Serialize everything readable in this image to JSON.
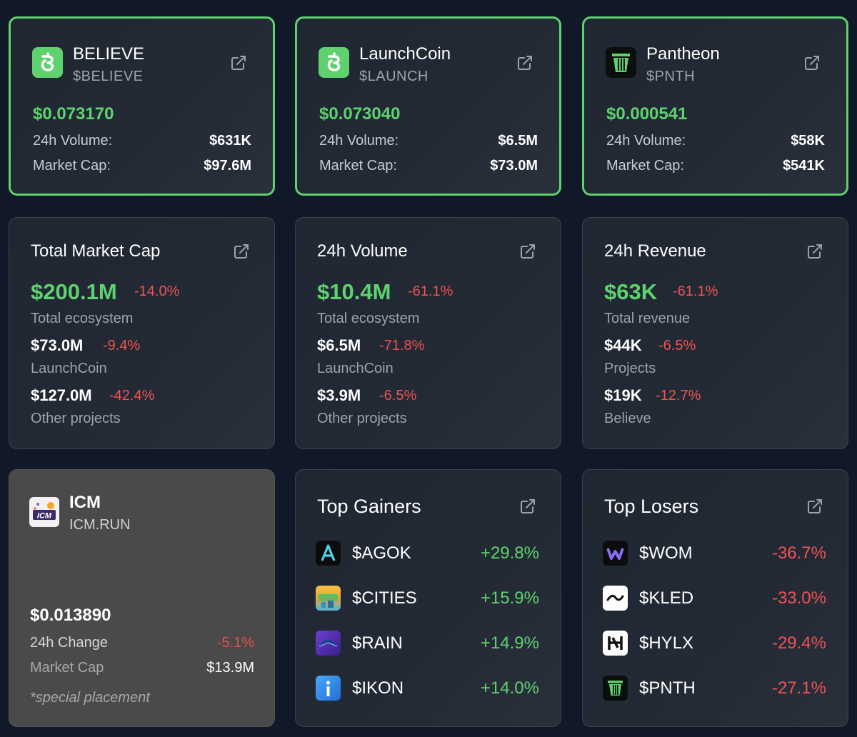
{
  "tokens": [
    {
      "name": "BELIEVE",
      "symbol": "$BELIEVE",
      "price": "$0.073170",
      "volume_label": "24h Volume:",
      "volume": "$631K",
      "mcap_label": "Market Cap:",
      "mcap": "$97.6M",
      "logo_icon": "believe-logo-icon"
    },
    {
      "name": "LaunchCoin",
      "symbol": "$LAUNCH",
      "price": "$0.073040",
      "volume_label": "24h Volume:",
      "volume": "$6.5M",
      "mcap_label": "Market Cap:",
      "mcap": "$73.0M",
      "logo_icon": "launchcoin-logo-icon"
    },
    {
      "name": "Pantheon",
      "symbol": "$PNTH",
      "price": "$0.000541",
      "volume_label": "24h Volume:",
      "volume": "$58K",
      "mcap_label": "Market Cap:",
      "mcap": "$541K",
      "logo_icon": "pantheon-logo-icon"
    }
  ],
  "stats": [
    {
      "title": "Total Market Cap",
      "big": "$200.1M",
      "big_change": "-14.0%",
      "big_sub": "Total ecosystem",
      "rows": [
        {
          "value": "$73.0M",
          "change": "-9.4%",
          "label": "LaunchCoin"
        },
        {
          "value": "$127.0M",
          "change": "-42.4%",
          "label": "Other projects"
        }
      ]
    },
    {
      "title": "24h Volume",
      "big": "$10.4M",
      "big_change": "-61.1%",
      "big_sub": "Total ecosystem",
      "rows": [
        {
          "value": "$6.5M",
          "change": "-71.8%",
          "label": "LaunchCoin"
        },
        {
          "value": "$3.9M",
          "change": "-6.5%",
          "label": "Other projects"
        }
      ]
    },
    {
      "title": "24h Revenue",
      "big": "$63K",
      "big_change": "-61.1%",
      "big_sub": "Total revenue",
      "rows": [
        {
          "value": "$44K",
          "change": "-6.5%",
          "label": "Projects"
        },
        {
          "value": "$19K",
          "change": "-12.7%",
          "label": "Believe"
        }
      ]
    }
  ],
  "icm": {
    "name": "ICM",
    "site": "ICM.RUN",
    "price": "$0.013890",
    "change_label": "24h Change",
    "change": "-5.1%",
    "mcap_label": "Market Cap",
    "mcap": "$13.9M",
    "note": "*special placement",
    "logo_text": "ICM"
  },
  "gainers": {
    "title": "Top Gainers",
    "items": [
      {
        "symbol": "$AGOK",
        "pct": "+29.8%"
      },
      {
        "symbol": "$CITIES",
        "pct": "+15.9%"
      },
      {
        "symbol": "$RAIN",
        "pct": "+14.9%"
      },
      {
        "symbol": "$IKON",
        "pct": "+14.0%"
      }
    ]
  },
  "losers": {
    "title": "Top Losers",
    "items": [
      {
        "symbol": "$WOM",
        "pct": "-36.7%"
      },
      {
        "symbol": "$KLED",
        "pct": "-33.0%"
      },
      {
        "symbol": "$HYLX",
        "pct": "-29.4%"
      },
      {
        "symbol": "$PNTH",
        "pct": "-27.1%"
      }
    ]
  },
  "colors": {
    "accent_green": "#5fd16f",
    "negative_red": "#f05252",
    "background": "#111827"
  }
}
